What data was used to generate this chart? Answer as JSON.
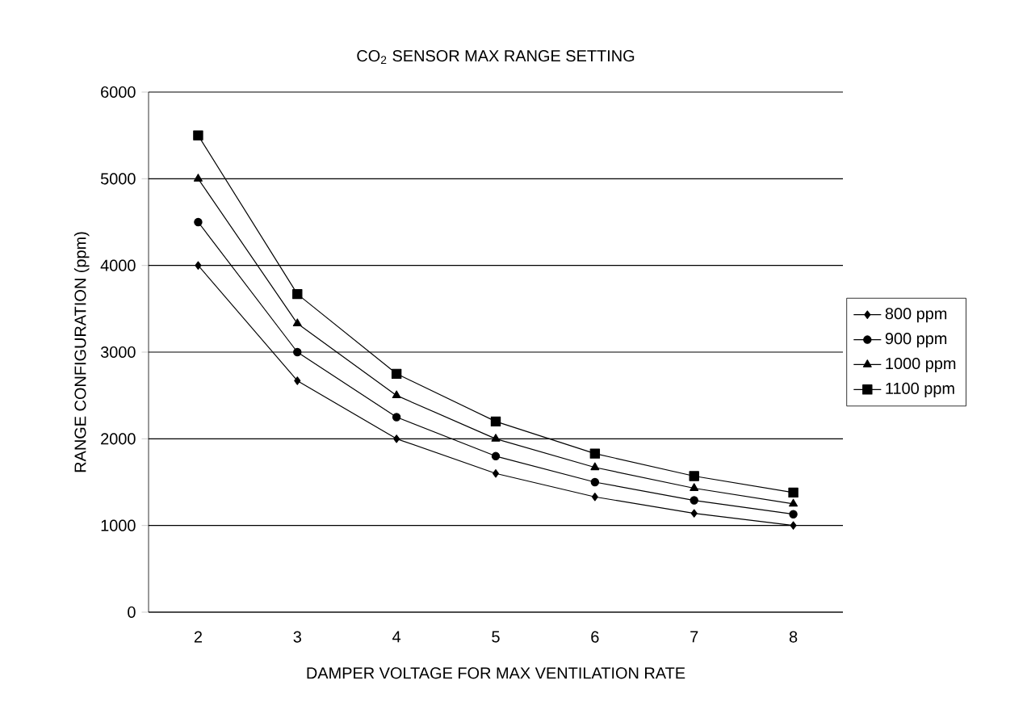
{
  "chart_data": {
    "type": "line",
    "title": "CO$_{2}$ SENSOR MAX RANGE SETTING",
    "xlabel": "DAMPER VOLTAGE FOR MAX VENTILATION RATE",
    "ylabel": "RANGE CONFIGURATION (ppm)",
    "categories": [
      "2",
      "3",
      "4",
      "5",
      "6",
      "7",
      "8"
    ],
    "series": [
      {
        "name": "800 ppm",
        "color": "#000000",
        "marker": "diamond",
        "values": [
          4000,
          2670,
          2000,
          1600,
          1330,
          1140,
          1000
        ]
      },
      {
        "name": "900 ppm",
        "color": "#000000",
        "marker": "circle",
        "values": [
          4500,
          3000,
          2250,
          1800,
          1500,
          1290,
          1130
        ]
      },
      {
        "name": "1000 ppm",
        "color": "#000000",
        "marker": "triangle",
        "values": [
          5000,
          3330,
          2500,
          2000,
          1670,
          1430,
          1250
        ]
      },
      {
        "name": "1100 ppm",
        "color": "#000000",
        "marker": "square",
        "values": [
          5500,
          3670,
          2750,
          2200,
          1830,
          1570,
          1380
        ]
      }
    ],
    "ylim": [
      0,
      6000
    ],
    "yticks": [
      0,
      1000,
      2000,
      3000,
      4000,
      5000,
      6000
    ],
    "grid": "y",
    "legend": "right",
    "line_style": "solid"
  }
}
